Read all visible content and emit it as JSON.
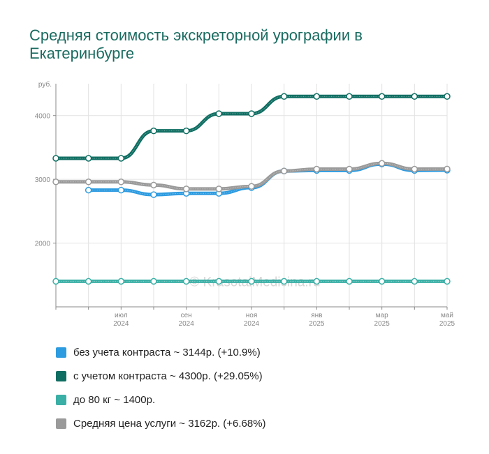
{
  "title": "Средняя стоимость экскреторной урографии в Екатеринбурге",
  "watermark": "© KrasotaiMedicina.ru",
  "chart_data": {
    "type": "line",
    "ylabel": "руб.",
    "ylim": [
      1000,
      4500
    ],
    "yticks": [
      "2000",
      "3000",
      "4000"
    ],
    "ytick_values": [
      2000,
      3000,
      4000
    ],
    "grid": true,
    "legend_position": "bottom",
    "x": [
      "2024-05",
      "2024-06",
      "2024-07",
      "2024-08",
      "2024-09",
      "2024-10",
      "2024-11",
      "2024-12",
      "2025-01",
      "2025-02",
      "2025-03",
      "2025-04",
      "2025-05"
    ],
    "xticks": [
      {
        "x": "2024-07",
        "month": "июл",
        "year": "2024"
      },
      {
        "x": "2024-09",
        "month": "сен",
        "year": "2024"
      },
      {
        "x": "2024-11",
        "month": "ноя",
        "year": "2024"
      },
      {
        "x": "2025-01",
        "month": "янв",
        "year": "2025"
      },
      {
        "x": "2025-03",
        "month": "мар",
        "year": "2025"
      },
      {
        "x": "2025-05",
        "month": "май",
        "year": "2025"
      }
    ],
    "series": [
      {
        "name": "без учета контраста ~ 3144р. (+10.9%)",
        "color": "#2d9be0",
        "values": [
          null,
          2830,
          2830,
          2760,
          2780,
          2780,
          2870,
          3130,
          3140,
          3140,
          3240,
          3140,
          3144
        ]
      },
      {
        "name": "с учетом контраста ~ 4300р. (+29.05%)",
        "color": "#0f6e62",
        "values": [
          3330,
          3330,
          3330,
          3760,
          3760,
          4030,
          4030,
          4300,
          4300,
          4300,
          4300,
          4300,
          4300
        ]
      },
      {
        "name": "до 80 кг ~ 1400р.",
        "color": "#3aafa5",
        "values": [
          1400,
          1400,
          1400,
          1400,
          1400,
          1400,
          1400,
          1400,
          1400,
          1400,
          1400,
          1400,
          1400
        ]
      },
      {
        "name": "Средняя цена услуги ~ 3162р. (+6.68%)",
        "color": "#9a9a9a",
        "values": [
          2960,
          2960,
          2960,
          2910,
          2850,
          2850,
          2890,
          3130,
          3160,
          3160,
          3250,
          3160,
          3162
        ]
      }
    ]
  }
}
